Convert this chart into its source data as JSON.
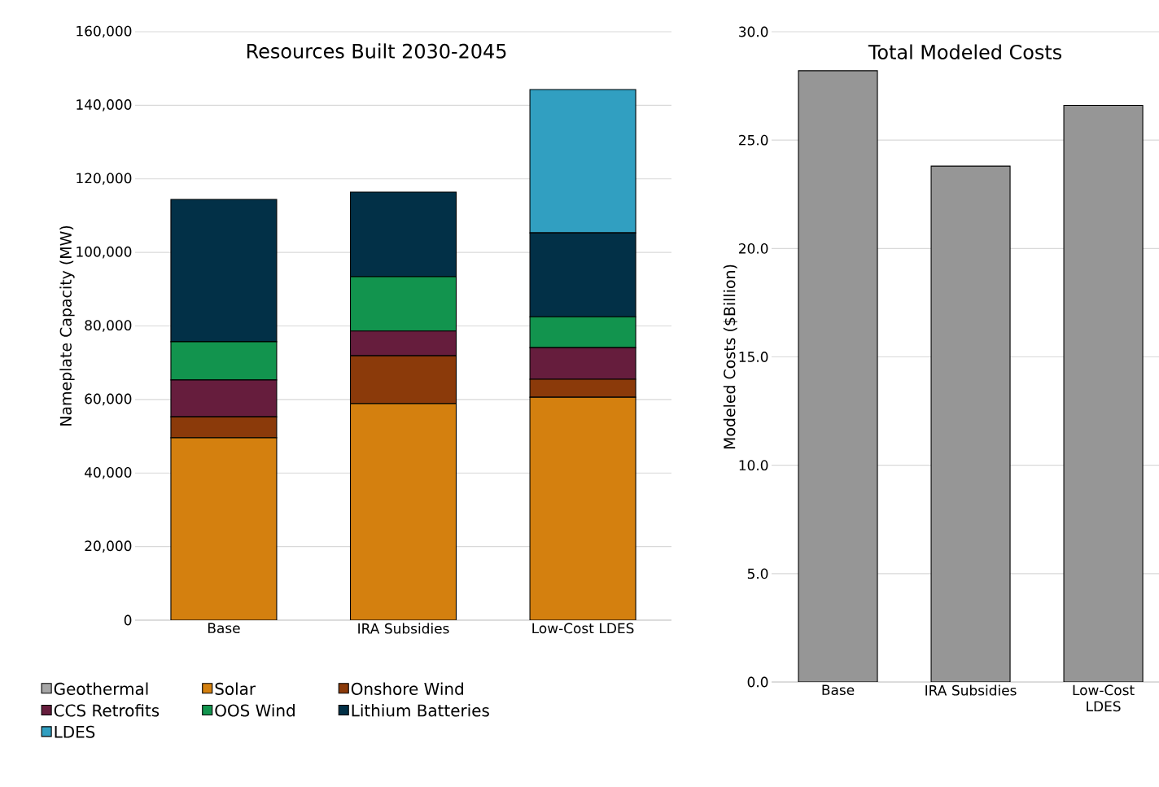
{
  "chart_data": [
    {
      "type": "bar",
      "title": "Resources Built 2030-2045",
      "ylabel": "Nameplate Capacity (MW)",
      "stacked": true,
      "grid": "y",
      "legend": "bottom",
      "categories": [
        "Base",
        "IRA Subsidies",
        "Low-Cost LDES"
      ],
      "ylim": [
        0,
        160000
      ],
      "yticks": [
        {
          "value": 0,
          "label": "0"
        },
        {
          "value": 20000,
          "label": "20,000"
        },
        {
          "value": 40000,
          "label": "40,000"
        },
        {
          "value": 60000,
          "label": "60,000"
        },
        {
          "value": 80000,
          "label": "80,000"
        },
        {
          "value": 100000,
          "label": "100,000"
        },
        {
          "value": 120000,
          "label": "120,000"
        },
        {
          "value": 140000,
          "label": "140,000"
        },
        {
          "value": 160000,
          "label": "160,000"
        }
      ],
      "series": [
        {
          "name": "Geothermal",
          "color": "#a6a6a6",
          "values": [
            0,
            0,
            0
          ]
        },
        {
          "name": "Solar",
          "color": "#d4800f",
          "values": [
            49600,
            58900,
            60600
          ]
        },
        {
          "name": "Onshore Wind",
          "color": "#8b3a0a",
          "values": [
            5700,
            13000,
            4900
          ]
        },
        {
          "name": "CCS Retrofits",
          "color": "#661d3d",
          "values": [
            10000,
            6700,
            8600
          ]
        },
        {
          "name": "OOS Wind",
          "color": "#12944e",
          "values": [
            10400,
            14800,
            8400
          ]
        },
        {
          "name": "Lithium Batteries",
          "color": "#023047",
          "values": [
            38700,
            23000,
            22800
          ]
        },
        {
          "name": "LDES",
          "color": "#319fc1",
          "values": [
            0,
            0,
            39000
          ]
        }
      ]
    },
    {
      "type": "bar",
      "title": "Total Modeled Costs",
      "ylabel": "Modeled Costs ($Billion)",
      "grid": "y",
      "categories": [
        "Base",
        "IRA Subsidies",
        "Low-Cost LDES"
      ],
      "ylim": [
        0,
        30
      ],
      "yticks": [
        {
          "value": 0,
          "label": "0.0"
        },
        {
          "value": 5,
          "label": "5.0"
        },
        {
          "value": 10,
          "label": "10.0"
        },
        {
          "value": 15,
          "label": "15.0"
        },
        {
          "value": 20,
          "label": "20.0"
        },
        {
          "value": 25,
          "label": "25.0"
        },
        {
          "value": 30,
          "label": "30.0"
        }
      ],
      "series": [
        {
          "color": "#969696",
          "values": [
            28.2,
            23.8,
            26.6
          ]
        }
      ]
    }
  ]
}
